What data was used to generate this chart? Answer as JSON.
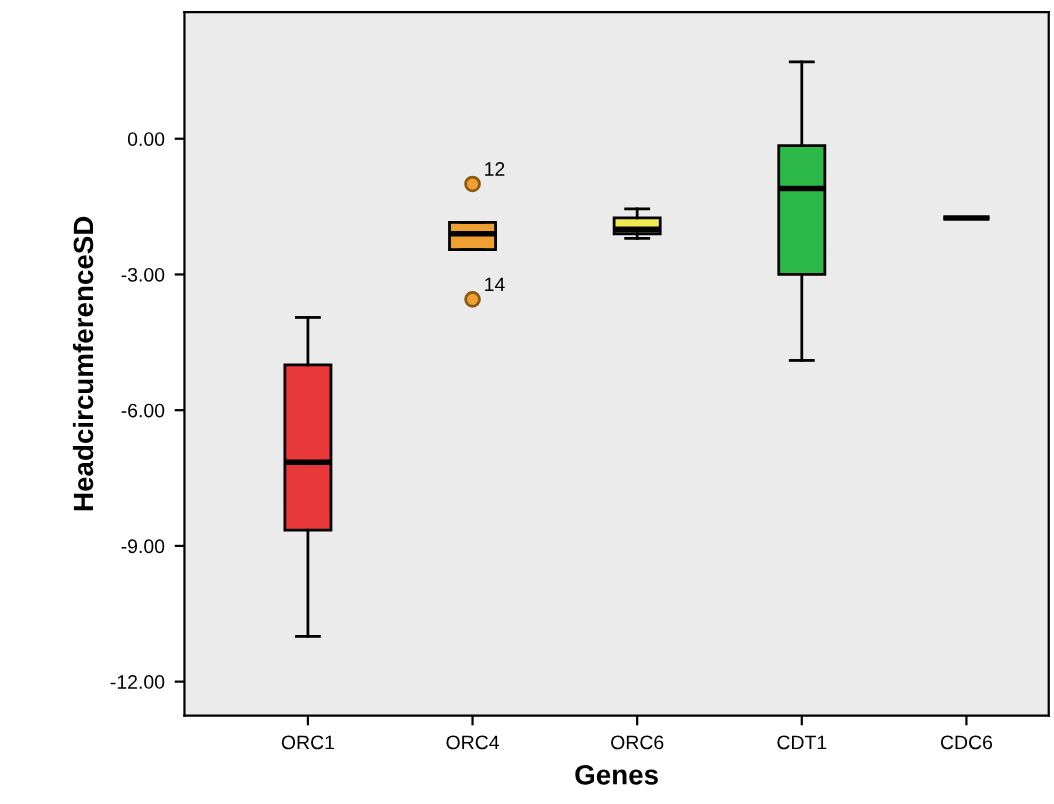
{
  "chart_data": {
    "type": "box",
    "xlabel": "Genes",
    "ylabel": "HeadcircumferenceSD",
    "categories": [
      "ORC1",
      "ORC4",
      "ORC6",
      "CDT1",
      "CDC6"
    ],
    "boxes": [
      {
        "low": -11.0,
        "q1": -8.65,
        "median": -7.15,
        "q3": -5.0,
        "high": -3.95
      },
      {
        "low": -2.45,
        "q1": -2.45,
        "median": -2.1,
        "q3": -1.85,
        "high": -1.85,
        "outliers": [
          -1.0,
          -3.55
        ]
      },
      {
        "low": -2.2,
        "q1": -2.1,
        "median": -2.0,
        "q3": -1.75,
        "high": -1.55
      },
      {
        "low": -4.9,
        "q1": -3.0,
        "median": -1.1,
        "q3": -0.15,
        "high": 1.7
      },
      {
        "low": -1.75,
        "q1": -1.75,
        "median": -1.75,
        "q3": -1.75,
        "high": -1.75
      }
    ],
    "colors": [
      "#e8383a",
      "#f0a030",
      "#f0e850",
      "#2db84a",
      "#000000"
    ],
    "ylim": [
      -12.75,
      2.8
    ],
    "yticks": [
      {
        "value": 0,
        "label": "0.00"
      },
      {
        "value": -3,
        "label": "-3.00"
      },
      {
        "value": -6,
        "label": "-6.00"
      },
      {
        "value": -9,
        "label": "-9.00"
      },
      {
        "value": -12,
        "label": "-12.00"
      }
    ],
    "annotations": [
      "12",
      "14"
    ],
    "grid": false
  }
}
